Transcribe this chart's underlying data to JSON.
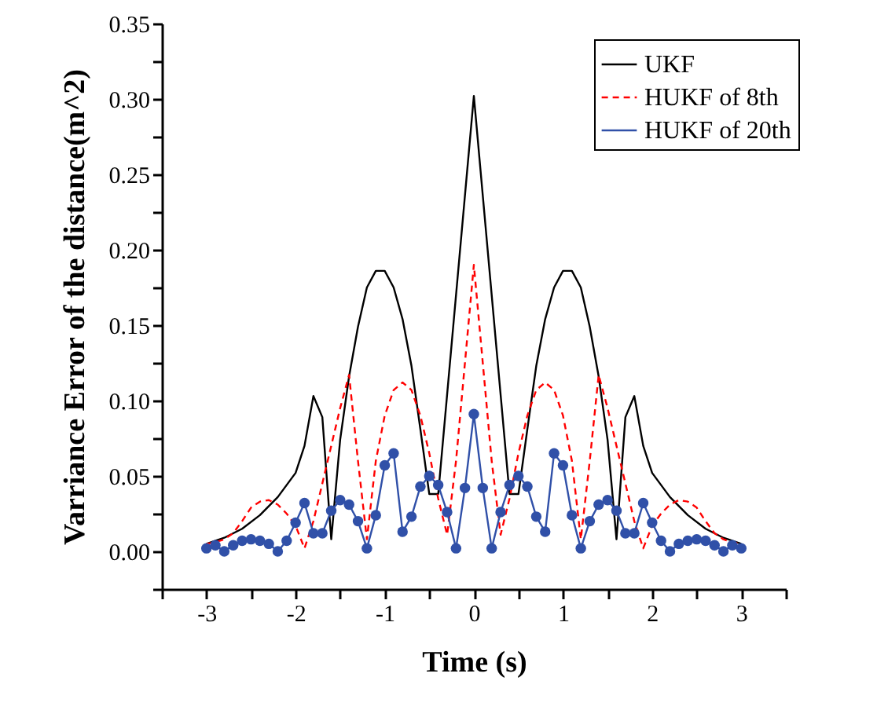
{
  "chart_data": {
    "type": "line",
    "xlabel": "Time (s)",
    "ylabel": "Varriance Error  of the distance(m^2)",
    "xlim": [
      -3.5,
      3.5
    ],
    "xticks": [
      {
        "value": -3.5,
        "label": null
      },
      -3,
      {
        "value": -2.5,
        "label": null
      },
      -2,
      {
        "value": -1.5,
        "label": null
      },
      -1,
      {
        "value": -0.5,
        "label": null
      },
      0,
      {
        "value": 0.5,
        "label": null
      },
      1,
      {
        "value": 1.5,
        "label": null
      },
      2,
      {
        "value": 2.5,
        "label": null
      },
      3,
      {
        "value": 3.5,
        "label": null
      }
    ],
    "ylim": [
      -0.025,
      0.35
    ],
    "yticks": [
      {
        "value": -0.025,
        "label": null
      },
      {
        "value": 0,
        "label": "0.00"
      },
      {
        "value": 0.025,
        "label": null
      },
      {
        "value": 0.05,
        "label": "0.05"
      },
      {
        "value": 0.075,
        "label": null
      },
      {
        "value": 0.1,
        "label": "0.10"
      },
      {
        "value": 0.125,
        "label": null
      },
      {
        "value": 0.15,
        "label": "0.15"
      },
      {
        "value": 0.175,
        "label": null
      },
      {
        "value": 0.2,
        "label": "0.20"
      },
      {
        "value": 0.225,
        "label": null
      },
      {
        "value": 0.25,
        "label": "0.25"
      },
      {
        "value": 0.275,
        "label": null
      },
      {
        "value": 0.3,
        "label": "0.30"
      },
      {
        "value": 0.325,
        "label": null
      },
      {
        "value": 0.35,
        "label": "0.35"
      }
    ],
    "legend": "top right",
    "series": [
      {
        "name": "UKF",
        "color": "#000000",
        "line_style": "solid",
        "x": [
          -3,
          -2.8,
          -2.6,
          -2.4,
          -2.2,
          -2.0,
          -1.9,
          -1.8,
          -1.7,
          -1.6,
          -1.5,
          -1.4,
          -1.3,
          -1.2,
          -1.1,
          -1.0,
          -0.9,
          -0.8,
          -0.7,
          -0.6,
          -0.5,
          -0.4,
          0,
          0.4,
          0.5,
          0.6,
          0.7,
          0.8,
          0.9,
          1.0,
          1.1,
          1.2,
          1.3,
          1.4,
          1.5,
          1.6,
          1.7,
          1.8,
          1.9,
          2.0,
          2.2,
          2.4,
          2.6,
          2.8,
          3
        ],
        "values": [
          0.005,
          0.009,
          0.015,
          0.024,
          0.036,
          0.052,
          0.07,
          0.103,
          0.089,
          0.008,
          0.074,
          0.116,
          0.149,
          0.175,
          0.186,
          0.186,
          0.175,
          0.154,
          0.123,
          0.081,
          0.038,
          0.038,
          0.302,
          0.038,
          0.038,
          0.081,
          0.123,
          0.154,
          0.175,
          0.186,
          0.186,
          0.175,
          0.149,
          0.116,
          0.074,
          0.008,
          0.089,
          0.103,
          0.07,
          0.052,
          0.036,
          0.024,
          0.015,
          0.009,
          0.005
        ]
      },
      {
        "name": "HUKF of 8th",
        "color": "#ff0000",
        "line_style": "dashed",
        "x": [
          -3,
          -2.9,
          -2.8,
          -2.7,
          -2.6,
          -2.5,
          -2.4,
          -2.3,
          -2.2,
          -2.1,
          -2.0,
          -1.9,
          -1.8,
          -1.7,
          -1.6,
          -1.5,
          -1.4,
          -1.3,
          -1.2,
          -1.1,
          -1.0,
          -0.9,
          -0.8,
          -0.7,
          -0.6,
          -0.5,
          -0.4,
          -0.3,
          -0.2,
          -0.1,
          0,
          0.1,
          0.2,
          0.3,
          0.4,
          0.5,
          0.6,
          0.7,
          0.8,
          0.9,
          1.0,
          1.1,
          1.2,
          1.3,
          1.4,
          1.5,
          1.6,
          1.7,
          1.8,
          1.9,
          2.0,
          2.1,
          2.2,
          2.3,
          2.4,
          2.5,
          2.6,
          2.7,
          2.8,
          2.9,
          3
        ],
        "values": [
          0.005,
          0.006,
          0.008,
          0.012,
          0.02,
          0.029,
          0.033,
          0.034,
          0.031,
          0.025,
          0.017,
          0.002,
          0.02,
          0.045,
          0.07,
          0.095,
          0.117,
          0.06,
          0.008,
          0.06,
          0.09,
          0.107,
          0.112,
          0.107,
          0.09,
          0.065,
          0.035,
          0.011,
          0.06,
          0.125,
          0.19,
          0.125,
          0.06,
          0.011,
          0.035,
          0.065,
          0.09,
          0.107,
          0.112,
          0.107,
          0.09,
          0.06,
          0.008,
          0.06,
          0.117,
          0.095,
          0.07,
          0.045,
          0.02,
          0.002,
          0.017,
          0.025,
          0.031,
          0.034,
          0.033,
          0.029,
          0.02,
          0.012,
          0.008,
          0.006,
          0.005
        ]
      },
      {
        "name": "HUKF of 20th",
        "color": "#3050a8",
        "line_style": "solid",
        "marker": "circle",
        "x": [
          -3,
          -2.9,
          -2.8,
          -2.7,
          -2.6,
          -2.5,
          -2.4,
          -2.3,
          -2.2,
          -2.1,
          -2.0,
          -1.9,
          -1.8,
          -1.7,
          -1.6,
          -1.5,
          -1.4,
          -1.3,
          -1.2,
          -1.1,
          -1.0,
          -0.9,
          -0.8,
          -0.7,
          -0.6,
          -0.5,
          -0.4,
          -0.3,
          -0.2,
          -0.1,
          0,
          0.1,
          0.2,
          0.3,
          0.4,
          0.5,
          0.6,
          0.7,
          0.8,
          0.9,
          1.0,
          1.1,
          1.2,
          1.3,
          1.4,
          1.5,
          1.6,
          1.7,
          1.8,
          1.9,
          2.0,
          2.1,
          2.2,
          2.3,
          2.4,
          2.5,
          2.6,
          2.7,
          2.8,
          2.9,
          3
        ],
        "values": [
          0.002,
          0.004,
          0.0,
          0.004,
          0.007,
          0.008,
          0.007,
          0.005,
          0.0,
          0.007,
          0.019,
          0.032,
          0.012,
          0.012,
          0.027,
          0.034,
          0.031,
          0.02,
          0.002,
          0.024,
          0.057,
          0.065,
          0.013,
          0.023,
          0.043,
          0.05,
          0.044,
          0.026,
          0.002,
          0.042,
          0.091,
          0.042,
          0.002,
          0.026,
          0.044,
          0.05,
          0.043,
          0.023,
          0.013,
          0.065,
          0.057,
          0.024,
          0.002,
          0.02,
          0.031,
          0.034,
          0.027,
          0.012,
          0.012,
          0.032,
          0.019,
          0.007,
          0.0,
          0.005,
          0.007,
          0.008,
          0.007,
          0.004,
          0.0,
          0.004,
          0.002
        ]
      }
    ]
  }
}
